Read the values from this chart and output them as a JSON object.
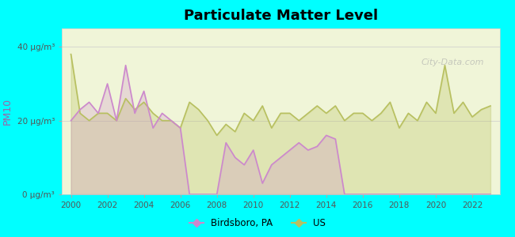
{
  "title": "Particulate Matter Level",
  "ylabel": "PM10",
  "background_color": "#00FFFF",
  "plot_bg_color": "#f0f5d8",
  "plot_bg_top_color": "#e8f0c8",
  "ytick_labels": [
    "0 μg/m³",
    "20 μg/m³",
    "40 μg/m³"
  ],
  "ytick_values": [
    0,
    20,
    40
  ],
  "ylim": [
    0,
    45
  ],
  "xlim": [
    1999.5,
    2023.5
  ],
  "xtick_values": [
    2000,
    2002,
    2004,
    2006,
    2008,
    2010,
    2012,
    2014,
    2016,
    2018,
    2020,
    2022
  ],
  "birdsboro_color": "#cc88cc",
  "us_color": "#b8c060",
  "legend_birdsboro": "Birdsboro, PA",
  "legend_us": "US",
  "watermark": "City-Data.com",
  "birdsboro_x": [
    2000,
    2000.5,
    2001,
    2001.5,
    2002,
    2002.5,
    2003,
    2003.5,
    2004,
    2004.5,
    2005,
    2005.5,
    2006,
    2006.5,
    2007,
    2007.5,
    2008,
    2008.5,
    2009,
    2009.5,
    2010,
    2010.5,
    2011,
    2011.5,
    2012,
    2012.5,
    2013,
    2013.5,
    2014,
    2014.5,
    2015,
    2015.5,
    2016,
    2016.5,
    2017,
    2017.5,
    2018,
    2018.5,
    2019,
    2019.5,
    2020,
    2020.5,
    2021,
    2021.5,
    2022,
    2022.5,
    2023
  ],
  "birdsboro_y": [
    20,
    23,
    25,
    22,
    30,
    20,
    35,
    22,
    28,
    18,
    22,
    20,
    18,
    0,
    0,
    0,
    0,
    14,
    10,
    8,
    12,
    3,
    8,
    10,
    12,
    14,
    12,
    13,
    16,
    15,
    0,
    0,
    0,
    0,
    0,
    0,
    0,
    0,
    0,
    0,
    0,
    0,
    0,
    0,
    0,
    0,
    0
  ],
  "us_x": [
    2000,
    2000.5,
    2001,
    2001.5,
    2002,
    2002.5,
    2003,
    2003.5,
    2004,
    2004.5,
    2005,
    2005.5,
    2006,
    2006.5,
    2007,
    2007.5,
    2008,
    2008.5,
    2009,
    2009.5,
    2010,
    2010.5,
    2011,
    2011.5,
    2012,
    2012.5,
    2013,
    2013.5,
    2014,
    2014.5,
    2015,
    2015.5,
    2016,
    2016.5,
    2017,
    2017.5,
    2018,
    2018.5,
    2019,
    2019.5,
    2020,
    2020.5,
    2021,
    2021.5,
    2022,
    2022.5,
    2023
  ],
  "us_y": [
    38,
    22,
    20,
    22,
    22,
    20,
    26,
    23,
    25,
    22,
    20,
    20,
    18,
    25,
    23,
    20,
    16,
    19,
    17,
    22,
    20,
    24,
    18,
    22,
    22,
    20,
    22,
    24,
    22,
    24,
    20,
    22,
    22,
    20,
    22,
    25,
    18,
    22,
    20,
    25,
    22,
    35,
    22,
    25,
    21,
    23,
    24
  ]
}
